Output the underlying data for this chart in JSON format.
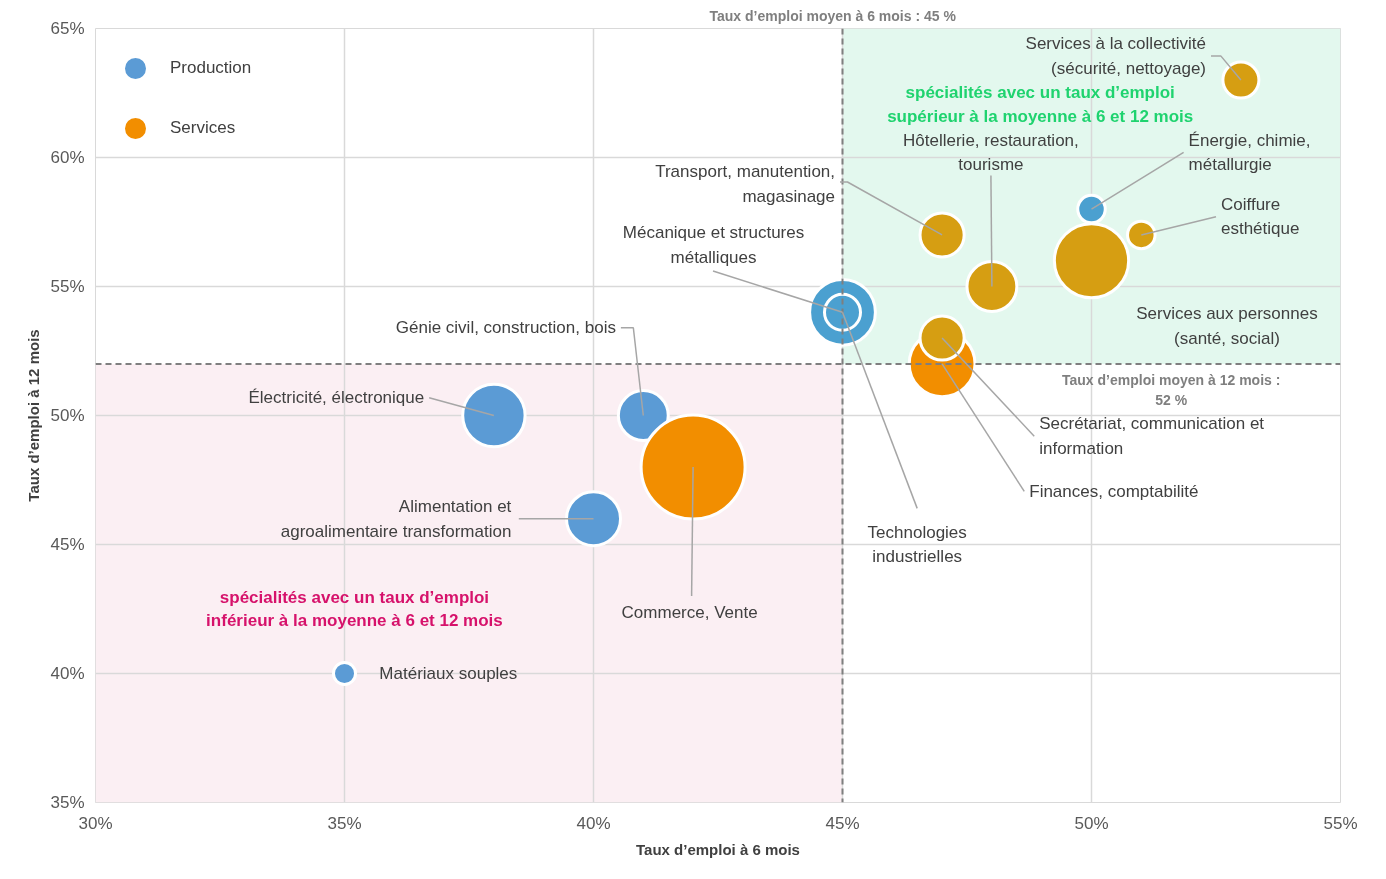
{
  "chart_data": {
    "type": "bubble",
    "xlabel": "Taux d’emploi à 6 mois",
    "ylabel": "Taux d’emploi à 12 mois",
    "xlim": [
      30,
      55
    ],
    "ylim": [
      35,
      65
    ],
    "xticks": [
      {
        "value": 30,
        "label": "30%"
      },
      {
        "value": 35,
        "label": "35%"
      },
      {
        "value": 40,
        "label": "40%"
      },
      {
        "value": 45,
        "label": "45%"
      },
      {
        "value": 50,
        "label": "50%"
      },
      {
        "value": 55,
        "label": "55%"
      }
    ],
    "yticks": [
      {
        "value": 35,
        "label": "35%"
      },
      {
        "value": 40,
        "label": "40%"
      },
      {
        "value": 45,
        "label": "45%"
      },
      {
        "value": 50,
        "label": "50%"
      },
      {
        "value": 55,
        "label": "55%"
      },
      {
        "value": 60,
        "label": "60%"
      },
      {
        "value": 65,
        "label": "65%"
      }
    ],
    "grid": true,
    "legend": "top left",
    "marker": "circle",
    "series": [
      {
        "name": "Production",
        "color": "#5b9bd5",
        "x": [
          38,
          41,
          40,
          35,
          45,
          45,
          50
        ],
        "values": [
          50,
          50,
          46,
          40,
          54,
          54,
          58
        ],
        "sizes": [
          0.36,
          0.23,
          0.27,
          0.045,
          0.12,
          0.4,
          0.07
        ],
        "colors": [
          "#5b9bd5",
          "#5b9bd5",
          "#5b9bd5",
          "#5b9bd5",
          "#4ba0d0",
          "#4ba0d0",
          "#4ba0d0"
        ]
      },
      {
        "name": "Services",
        "color": "#f28e00",
        "x": [
          42,
          47,
          47,
          47,
          48,
          50,
          51,
          53
        ],
        "values": [
          48,
          52,
          53,
          57,
          55,
          56,
          57,
          63
        ],
        "sizes": [
          1,
          0.4,
          0.18,
          0.18,
          0.23,
          0.51,
          0.07,
          0.12
        ],
        "colors": [
          "#f28e00",
          "#f28e00",
          "#d69e12",
          "#d69e12",
          "#d69e12",
          "#d69e12",
          "#d69e12",
          "#d69e12"
        ]
      }
    ],
    "annotations": [
      {
        "text": "Électricité, électronique",
        "x": 38,
        "y": 50
      },
      {
        "text": "Génie civil, construction, bois",
        "x": 41,
        "y": 50
      },
      {
        "text": "Alimentation et\nagroalimentaire transformation",
        "x": 40,
        "y": 46
      },
      {
        "text": "Matériaux souples",
        "x": 35,
        "y": 40
      },
      {
        "text": "Mécanique et structures\nmétalliques",
        "x": 45,
        "y": 54
      },
      {
        "text": "Technologies\nindustrielles",
        "x": 45,
        "y": 54
      },
      {
        "text": "Énergie, chimie,\nmétallurgie",
        "x": 50,
        "y": 58
      },
      {
        "text": "Commerce, Vente",
        "x": 42,
        "y": 48
      },
      {
        "text": "Finances, comptabilité",
        "x": 47,
        "y": 52
      },
      {
        "text": "Secrétariat, communication et\ninformation",
        "x": 47,
        "y": 53
      },
      {
        "text": "Transport, manutention,\nmagasinage",
        "x": 47,
        "y": 57
      },
      {
        "text": "Hôtellerie, restauration,\ntourisme",
        "x": 48,
        "y": 55
      },
      "Services aux personnes\n(santé, social)",
      {
        "text": "Coiffure\nesthétique",
        "x": 51,
        "y": 57
      },
      {
        "text": "Services à la collectivité\n(sécurité, nettoyage)",
        "x": 53,
        "y": 63
      }
    ],
    "ref_lines": [
      {
        "axis": "x",
        "value": 45,
        "label": "Taux d’emploi moyen à 6 mois : 45 %",
        "color": "#7f7f7f",
        "line_style": "dashed"
      },
      {
        "axis": "y",
        "value": 52,
        "label": "Taux d’emploi moyen à 12 mois :\n52 %",
        "color": "#7f7f7f",
        "line_style": "dashed"
      }
    ],
    "bands": [
      {
        "axis": "x",
        "from": 45,
        "to": 55,
        "color": "#e3f8ee",
        "label": "spécialités avec un taux d’emploi\nsupérieur à la moyenne à 6 et 12 mois"
      },
      {
        "axis": "x",
        "from": 30,
        "to": 45,
        "color": "#fbeff3",
        "label": "spécialités avec un taux d’emploi\ninférieur à la moyenne à 6 et 12 mois"
      }
    ]
  }
}
